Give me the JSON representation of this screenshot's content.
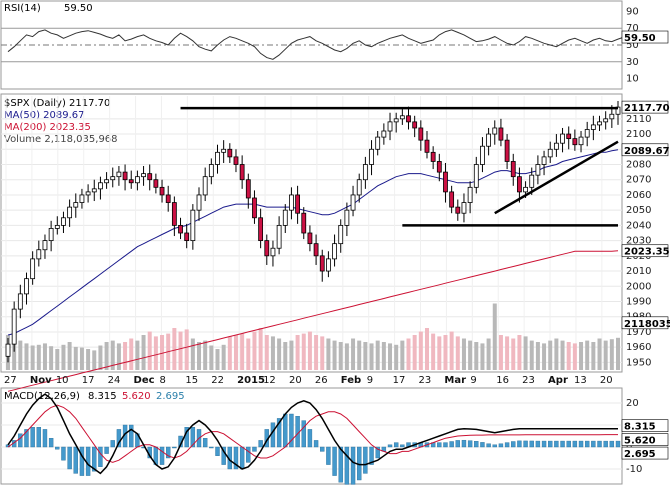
{
  "chart_data": [
    {
      "type": "line",
      "indicator": "RSI",
      "legend": "RSI(14)",
      "last_value_text": "59.50",
      "last_value": 59.5,
      "ylim": [
        0,
        100
      ],
      "y_ticks": [
        "90",
        "70",
        "50",
        "30",
        "10"
      ],
      "reference_levels": [
        30,
        50,
        70
      ],
      "box_label": "59.50",
      "series": [
        {
          "name": "RSI(14)",
          "color": "#333333",
          "values": [
            42,
            48,
            55,
            62,
            60,
            66,
            68,
            64,
            62,
            58,
            61,
            64,
            66,
            67,
            65,
            63,
            60,
            58,
            62,
            55,
            57,
            60,
            62,
            58,
            55,
            53,
            50,
            58,
            64,
            60,
            55,
            48,
            45,
            43,
            50,
            56,
            60,
            58,
            55,
            52,
            48,
            40,
            35,
            33,
            38,
            45,
            52,
            56,
            58,
            60,
            55,
            52,
            48,
            44,
            42,
            46,
            52,
            55,
            50,
            48,
            52,
            55,
            58,
            60,
            62,
            58,
            55,
            52,
            54,
            56,
            62,
            66,
            68,
            65,
            62,
            58,
            54,
            55,
            57,
            60,
            56,
            52,
            50,
            54,
            60,
            58,
            55,
            52,
            50,
            48,
            52,
            56,
            58,
            55,
            52,
            56,
            58,
            55,
            54,
            57,
            59.5
          ]
        }
      ]
    },
    {
      "type": "candlestick",
      "symbol": "$SPX",
      "legend_title": "$SPX (Daily) 2117.70",
      "legend_ma50": "MA(50) 2089.67",
      "legend_ma200": "MA(200) 2023.35",
      "legend_volume": "Volume 2,118,035,968",
      "ylim": [
        1945,
        2125
      ],
      "y_ticks": [
        "2110",
        "2100",
        "2090",
        "2080",
        "2070",
        "2060",
        "2050",
        "2040",
        "2030",
        "2020",
        "2010",
        "2000",
        "1990",
        "1980",
        "1970",
        "1960",
        "1950"
      ],
      "x_tick_labels": [
        "27",
        "Nov",
        "10",
        "17",
        "24",
        "Dec",
        "8",
        "15",
        "22",
        "2015",
        "12",
        "20",
        "26",
        "Feb",
        "9",
        "17",
        "23",
        "Mar",
        "9",
        "16",
        "23",
        "Apr",
        "13",
        "20"
      ],
      "price_box": "2117.70",
      "ma50_box": "2089.67",
      "ma200_box": "2023.35",
      "volume_box": "2118035",
      "colors": {
        "up": "#ffffff",
        "down": "#cc1144",
        "ma50": "#1a1a8c",
        "ma200": "#cc1133",
        "volume_up": "#b8b8b8",
        "volume_down": "#f0b8c0"
      },
      "closes": [
        1962,
        1985,
        1995,
        2005,
        2018,
        2024,
        2030,
        2038,
        2040,
        2045,
        2052,
        2055,
        2060,
        2062,
        2064,
        2068,
        2070,
        2072,
        2075,
        2070,
        2068,
        2072,
        2074,
        2070,
        2065,
        2060,
        2055,
        2040,
        2035,
        2030,
        2050,
        2060,
        2072,
        2080,
        2088,
        2090,
        2085,
        2080,
        2070,
        2058,
        2045,
        2030,
        2020,
        2025,
        2040,
        2050,
        2060,
        2048,
        2035,
        2028,
        2020,
        2010,
        2018,
        2028,
        2040,
        2050,
        2060,
        2070,
        2080,
        2090,
        2098,
        2102,
        2108,
        2110,
        2112,
        2108,
        2104,
        2096,
        2088,
        2082,
        2075,
        2062,
        2052,
        2048,
        2055,
        2065,
        2080,
        2092,
        2100,
        2104,
        2096,
        2082,
        2072,
        2062,
        2065,
        2073,
        2080,
        2085,
        2090,
        2094,
        2100,
        2097,
        2093,
        2098,
        2103,
        2106,
        2108,
        2110,
        2113,
        2117.7
      ],
      "ma50": [
        1968,
        1969,
        1971,
        1973,
        1975,
        1978,
        1981,
        1984,
        1987,
        1990,
        1993,
        1996,
        1999,
        2002,
        2005,
        2008,
        2011,
        2014,
        2017,
        2020,
        2023,
        2026,
        2028,
        2030,
        2032,
        2034,
        2036,
        2038,
        2039,
        2040,
        2042,
        2044,
        2046,
        2048,
        2050,
        2052,
        2053,
        2054,
        2054,
        2054,
        2054,
        2053,
        2052,
        2052,
        2052,
        2052,
        2052,
        2051,
        2050,
        2049,
        2048,
        2047,
        2047,
        2048,
        2050,
        2052,
        2054,
        2057,
        2060,
        2063,
        2066,
        2068,
        2070,
        2072,
        2073,
        2074,
        2074,
        2074,
        2073,
        2072,
        2071,
        2070,
        2069,
        2068,
        2068,
        2068,
        2069,
        2071,
        2073,
        2075,
        2076,
        2076,
        2075,
        2074,
        2074,
        2075,
        2076,
        2078,
        2079,
        2080,
        2082,
        2083,
        2084,
        2085,
        2086,
        2087,
        2088,
        2088,
        2089,
        2089.67
      ],
      "ma200": [
        1931,
        1932,
        1933,
        1934,
        1935,
        1936,
        1937,
        1938,
        1939,
        1940,
        1941,
        1942,
        1943,
        1944,
        1945,
        1946,
        1947,
        1948,
        1949,
        1950,
        1951,
        1952,
        1953,
        1954,
        1955,
        1956,
        1957,
        1958,
        1959,
        1960,
        1961,
        1962,
        1963,
        1964,
        1965,
        1966,
        1967,
        1968,
        1969,
        1970,
        1971,
        1972,
        1973,
        1974,
        1975,
        1976,
        1977,
        1978,
        1979,
        1980,
        1981,
        1982,
        1983,
        1984,
        1985,
        1986,
        1987,
        1988,
        1989,
        1990,
        1991,
        1992,
        1993,
        1994,
        1995,
        1996,
        1997,
        1998,
        1999,
        2000,
        2001,
        2002,
        2003,
        2004,
        2005,
        2006,
        2007,
        2008,
        2009,
        2010,
        2011,
        2012,
        2013,
        2014,
        2015,
        2016,
        2017,
        2018,
        2019,
        2020,
        2021,
        2022,
        2023,
        2023,
        2023,
        2023,
        2023,
        2023,
        2023,
        2023.35
      ],
      "volume_rel": [
        0.5,
        0.4,
        0.42,
        0.38,
        0.35,
        0.36,
        0.38,
        0.34,
        0.3,
        0.36,
        0.4,
        0.33,
        0.32,
        0.3,
        0.28,
        0.35,
        0.4,
        0.42,
        0.38,
        0.4,
        0.45,
        0.42,
        0.5,
        0.55,
        0.48,
        0.5,
        0.52,
        0.6,
        0.55,
        0.58,
        0.45,
        0.4,
        0.42,
        0.35,
        0.3,
        0.36,
        0.48,
        0.5,
        0.52,
        0.45,
        0.55,
        0.6,
        0.5,
        0.48,
        0.45,
        0.4,
        0.42,
        0.5,
        0.52,
        0.55,
        0.5,
        0.48,
        0.45,
        0.42,
        0.4,
        0.38,
        0.45,
        0.42,
        0.4,
        0.38,
        0.42,
        0.4,
        0.38,
        0.36,
        0.42,
        0.45,
        0.5,
        0.55,
        0.6,
        0.52,
        0.48,
        0.5,
        0.55,
        0.48,
        0.45,
        0.42,
        0.4,
        0.38,
        0.45,
        0.95,
        0.5,
        0.48,
        0.45,
        0.5,
        0.48,
        0.42,
        0.4,
        0.38,
        0.42,
        0.45,
        0.42,
        0.4,
        0.38,
        0.4,
        0.42,
        0.4,
        0.45,
        0.42,
        0.44,
        0.46
      ],
      "trend_lines": [
        {
          "name": "resistance",
          "points": [
            [
              28,
              2117
            ],
            [
              99,
              2117
            ]
          ]
        },
        {
          "name": "support",
          "points": [
            [
              64,
              2040
            ],
            [
              99,
              2040
            ]
          ]
        },
        {
          "name": "rising-support",
          "points": [
            [
              79,
              2048
            ],
            [
              99,
              2095
            ]
          ]
        }
      ]
    },
    {
      "type": "bar+line",
      "indicator": "MACD",
      "legend_label": "MACD(12,26,9)",
      "macd_text": "8.315",
      "signal_text": "5.620",
      "hist_text": "2.695",
      "ylim": [
        -15,
        25
      ],
      "y_ticks": [
        "20",
        "10",
        "0",
        "-10"
      ],
      "box_labels": [
        "8.315",
        "5.620",
        "2.695"
      ],
      "colors": {
        "macd": "#000000",
        "signal": "#cc1133",
        "hist": "#4499cc"
      },
      "macd": [
        1,
        5,
        10,
        15,
        19,
        22,
        24,
        22,
        18,
        12,
        6,
        1,
        -4,
        -8,
        -10,
        -12,
        -9,
        -4,
        2,
        6,
        8,
        6,
        1,
        -4,
        -8,
        -10,
        -9,
        -5,
        1,
        7,
        10,
        12,
        10,
        7,
        3,
        -2,
        -6,
        -8,
        -10,
        -9,
        -6,
        -2,
        3,
        7,
        11,
        15,
        18,
        20,
        21,
        20,
        17,
        13,
        8,
        3,
        -1,
        -4,
        -7,
        -8,
        -8,
        -7,
        -6,
        -4,
        -2,
        -1,
        -1,
        0,
        1,
        2,
        3,
        4,
        5,
        6,
        7,
        8,
        8.3,
        8.2,
        8,
        7.5,
        7,
        6.5,
        7,
        7.5,
        8,
        8.3,
        8.315,
        8.3,
        8.3,
        8.3,
        8.3,
        8.3,
        8.3,
        8.3,
        8.3,
        8.3,
        8.3,
        8.3,
        8.3,
        8.3,
        8.3,
        8.315
      ],
      "signal": [
        0,
        2,
        4,
        7,
        10,
        13,
        16,
        18,
        19,
        18,
        16,
        13,
        9,
        5,
        1,
        -3,
        -6,
        -7,
        -6,
        -4,
        -2,
        0,
        1,
        1,
        0,
        -2,
        -4,
        -5,
        -4,
        -2,
        1,
        4,
        6,
        7,
        7,
        6,
        4,
        2,
        0,
        -2,
        -4,
        -5,
        -5,
        -4,
        -2,
        0,
        3,
        6,
        9,
        12,
        14,
        15,
        16,
        16,
        15,
        13,
        10,
        7,
        4,
        1,
        -1,
        -2,
        -3,
        -3,
        -2,
        -2,
        -1,
        0,
        1,
        2,
        3,
        4,
        4.5,
        5,
        5.2,
        5.3,
        5.4,
        5.4,
        5.5,
        5.5,
        5.5,
        5.5,
        5.5,
        5.5,
        5.55,
        5.55,
        5.6,
        5.6,
        5.6,
        5.6,
        5.6,
        5.6,
        5.6,
        5.6,
        5.6,
        5.6,
        5.6,
        5.62,
        5.62,
        5.62
      ]
    }
  ]
}
